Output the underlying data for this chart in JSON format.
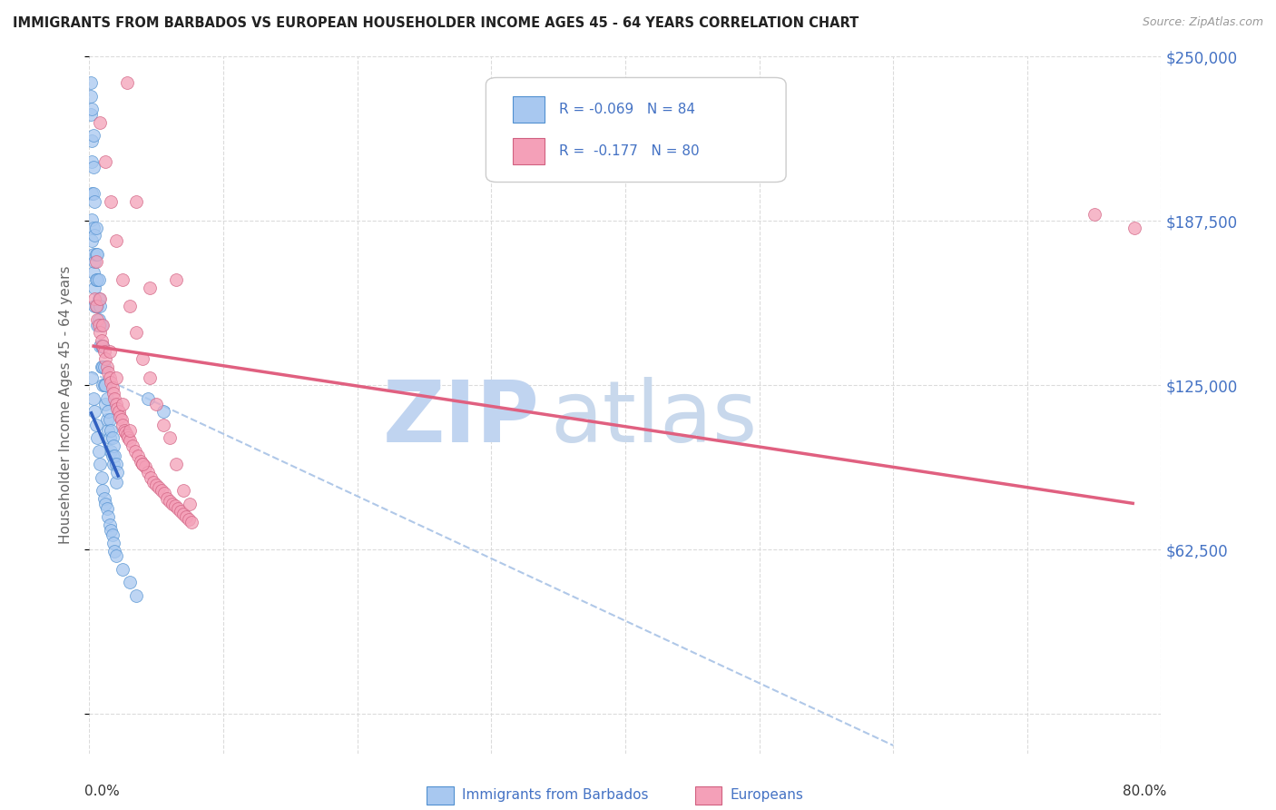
{
  "title": "IMMIGRANTS FROM BARBADOS VS EUROPEAN HOUSEHOLDER INCOME AGES 45 - 64 YEARS CORRELATION CHART",
  "source": "Source: ZipAtlas.com",
  "ylabel": "Householder Income Ages 45 - 64 years",
  "yticks": [
    0,
    62500,
    125000,
    187500,
    250000
  ],
  "ytick_labels_right": [
    "",
    "$62,500",
    "$125,000",
    "$187,500",
    "$250,000"
  ],
  "xmin": 0.0,
  "xmax": 0.8,
  "ymin": -15000,
  "ymax": 250000,
  "barbados_color": "#a8c8f0",
  "barbados_edge": "#5090d0",
  "europeans_color": "#f4a0b8",
  "europeans_edge": "#d06080",
  "barbados_trend_color": "#3060c0",
  "europeans_trend_color": "#e06080",
  "dashed_color": "#b0c8e8",
  "background_color": "#ffffff",
  "grid_color": "#d8d8d8",
  "label_color": "#4472c4",
  "watermark_zip_color": "#c0d4f0",
  "watermark_atlas_color": "#c8d8ec"
}
